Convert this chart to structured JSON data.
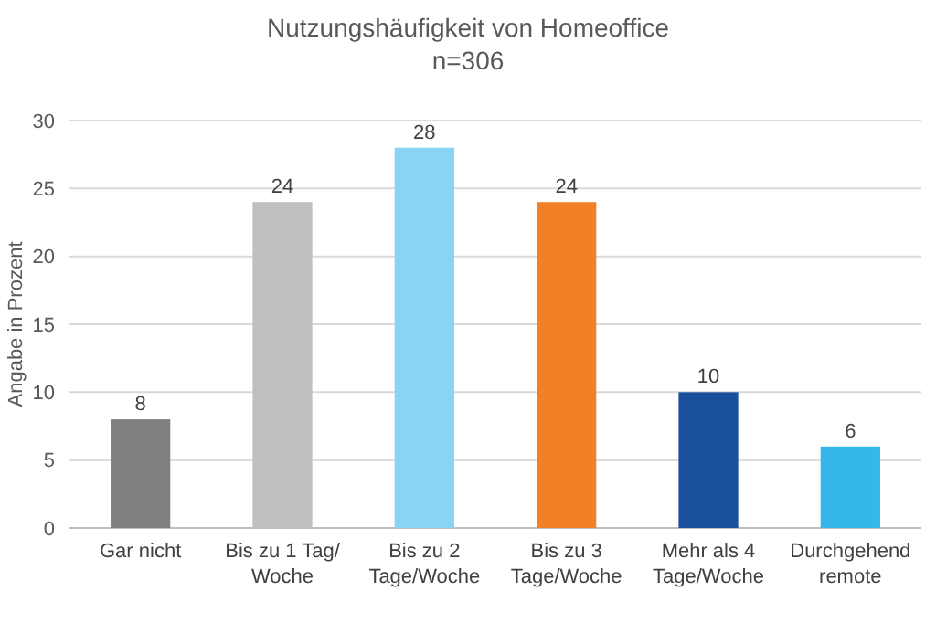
{
  "chart_data": {
    "type": "bar",
    "title": "Nutzungshäufigkeit von Homeoffice",
    "subtitle": "n=306",
    "ylabel": "Angabe in Prozent",
    "categories": [
      "Gar nicht",
      "Bis zu 1 Tag/Woche",
      "Bis zu 2 Tage/Woche",
      "Bis zu 3 Tage/Woche",
      "Mehr als 4 Tage/Woche",
      "Durchgehend remote"
    ],
    "values": [
      8,
      24,
      28,
      24,
      10,
      6
    ],
    "colors": [
      "#7f7f7f",
      "#bfbfbf",
      "#89d4f5",
      "#f28026",
      "#1a4f9c",
      "#35b7ea"
    ],
    "ylim": [
      0,
      30
    ],
    "yticks": [
      0,
      5,
      10,
      15,
      20,
      25,
      30
    ],
    "grid": "y",
    "data_labels": true
  }
}
